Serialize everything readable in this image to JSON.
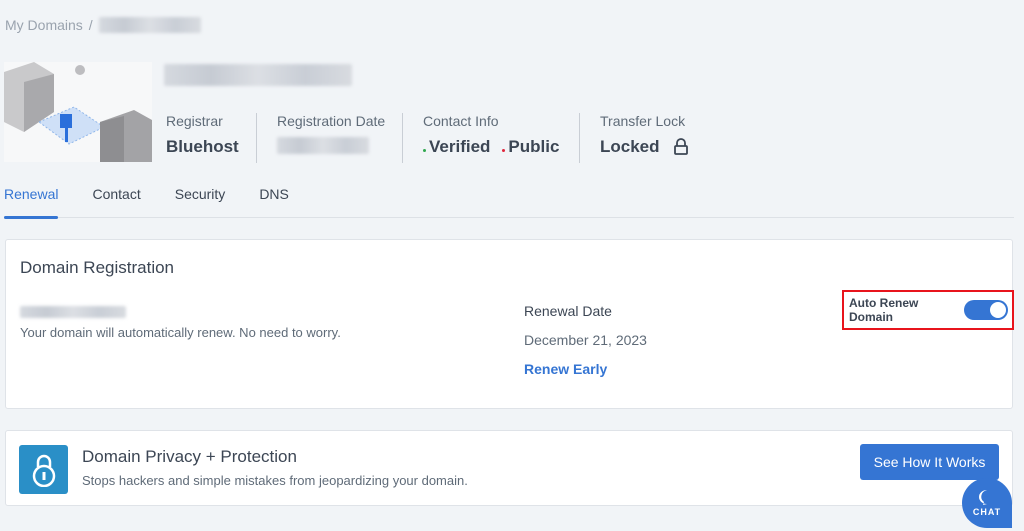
{
  "breadcrumb": {
    "root": "My Domains",
    "sep": "/"
  },
  "meta": {
    "registrar": {
      "label": "Registrar",
      "value": "Bluehost"
    },
    "registration_date": {
      "label": "Registration Date"
    },
    "contact": {
      "label": "Contact Info",
      "verified": "Verified",
      "public": "Public",
      "verified_color": "#2fa84f",
      "public_color": "#e0263c"
    },
    "transfer_lock": {
      "label": "Transfer Lock",
      "value": "Locked",
      "icon": "lock-icon"
    }
  },
  "tabs": [
    {
      "label": "Renewal",
      "active": true
    },
    {
      "label": "Contact"
    },
    {
      "label": "Security"
    },
    {
      "label": "DNS"
    }
  ],
  "registration": {
    "title": "Domain Registration",
    "message": "Your domain will automatically renew. No need to worry.",
    "renewal_label": "Renewal Date",
    "renewal_date": "December 21, 2023",
    "renew_early": "Renew Early",
    "auto_renew_label": "Auto Renew Domain",
    "auto_renew_on": true
  },
  "privacy": {
    "title": "Domain Privacy + Protection",
    "desc": "Stops hackers and simple mistakes from jeopardizing your domain.",
    "button": "See How It Works"
  },
  "chat": {
    "label": "CHAT"
  },
  "colors": {
    "accent": "#3575d3",
    "highlight": "#e8141c"
  }
}
